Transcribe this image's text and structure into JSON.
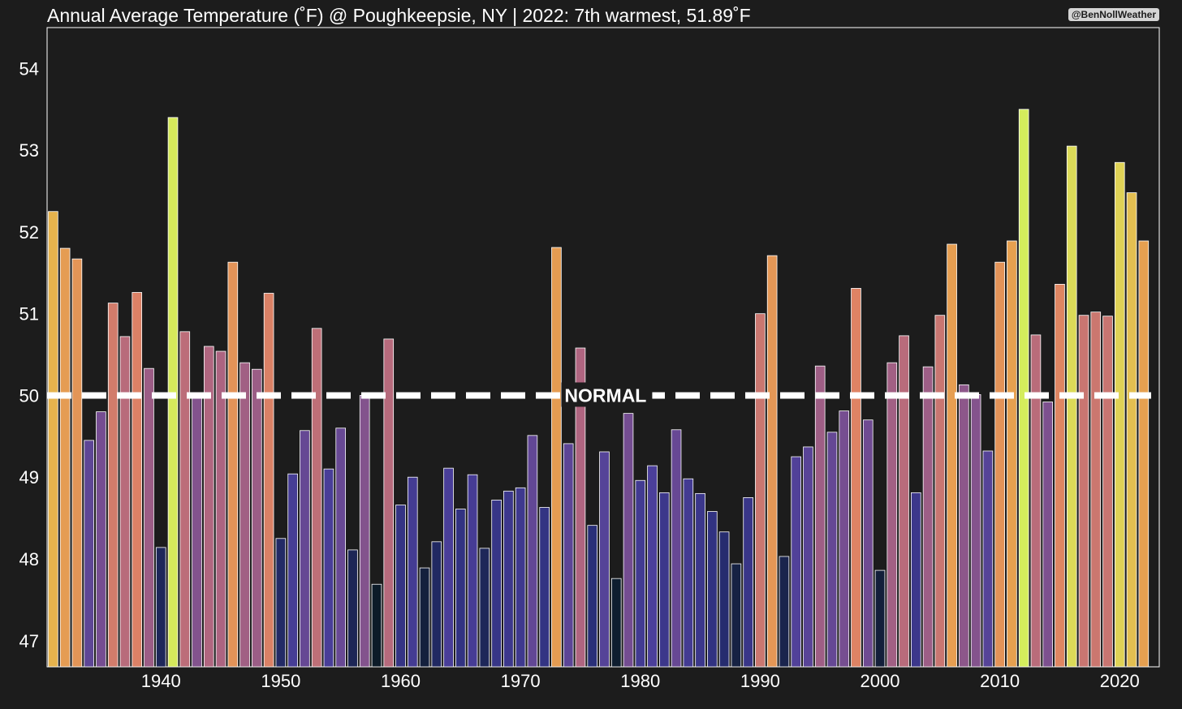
{
  "credit": "@BenNollWeather",
  "chart_data": {
    "type": "bar",
    "title": "Annual Average Temperature (˚F) @ Poughkeepsie, NY | 2022: 7th warmest, 51.89˚F",
    "xlabel": "",
    "ylabel": "",
    "x": [
      1931,
      1932,
      1933,
      1934,
      1935,
      1936,
      1937,
      1938,
      1939,
      1940,
      1941,
      1942,
      1943,
      1944,
      1945,
      1946,
      1947,
      1948,
      1949,
      1950,
      1951,
      1952,
      1953,
      1954,
      1955,
      1956,
      1957,
      1958,
      1959,
      1960,
      1961,
      1962,
      1963,
      1964,
      1965,
      1966,
      1967,
      1968,
      1969,
      1970,
      1971,
      1972,
      1973,
      1974,
      1975,
      1976,
      1977,
      1978,
      1979,
      1980,
      1981,
      1982,
      1983,
      1984,
      1985,
      1986,
      1987,
      1988,
      1989,
      1990,
      1991,
      1992,
      1993,
      1994,
      1995,
      1996,
      1997,
      1998,
      1999,
      2000,
      2001,
      2002,
      2003,
      2004,
      2005,
      2006,
      2007,
      2008,
      2009,
      2010,
      2011,
      2012,
      2013,
      2014,
      2015,
      2016,
      2017,
      2018,
      2019,
      2020,
      2021,
      2022
    ],
    "values": [
      52.25,
      51.8,
      51.67,
      49.45,
      49.8,
      51.13,
      50.72,
      51.26,
      50.33,
      48.14,
      53.4,
      50.78,
      50.0,
      50.6,
      50.54,
      51.63,
      50.4,
      50.32,
      51.25,
      48.25,
      49.04,
      49.57,
      50.82,
      49.1,
      49.6,
      48.11,
      50.0,
      47.69,
      50.69,
      48.66,
      49.0,
      47.89,
      48.21,
      49.11,
      48.61,
      49.03,
      48.13,
      48.72,
      48.83,
      48.87,
      49.51,
      48.63,
      51.81,
      49.41,
      50.58,
      48.41,
      49.31,
      47.76,
      49.78,
      48.96,
      49.14,
      48.81,
      49.58,
      48.98,
      48.8,
      48.58,
      48.33,
      47.94,
      48.75,
      51.0,
      51.71,
      48.03,
      49.25,
      49.37,
      50.36,
      49.55,
      49.81,
      51.31,
      49.7,
      47.86,
      50.4,
      50.73,
      48.81,
      50.35,
      50.98,
      51.85,
      50.13,
      50.01,
      49.32,
      51.63,
      51.89,
      53.5,
      50.74,
      49.92,
      51.36,
      53.05,
      50.98,
      51.02,
      50.97,
      52.85,
      52.48,
      51.89
    ],
    "normal": {
      "value": 50.0,
      "label": "NORMAL"
    },
    "xticks": [
      1940,
      1950,
      1960,
      1970,
      1980,
      1990,
      2000,
      2010,
      2020
    ],
    "yticks": [
      47,
      48,
      49,
      50,
      51,
      52,
      53,
      54
    ],
    "ylim": [
      46.68,
      54.5
    ],
    "xlim": [
      1930.5,
      2023.3
    ],
    "grid": false,
    "legend": "none",
    "colors": {
      "background": "#1c1c1c",
      "bar_edge": "#ffffff",
      "normal_line": "#ffffff",
      "colormap": [
        "#0c1b28",
        "#2a2f7a",
        "#4b3f9a",
        "#7a4f90",
        "#b06680",
        "#df8463",
        "#e8a84a",
        "#e0cf55",
        "#d4ed5c"
      ]
    }
  }
}
